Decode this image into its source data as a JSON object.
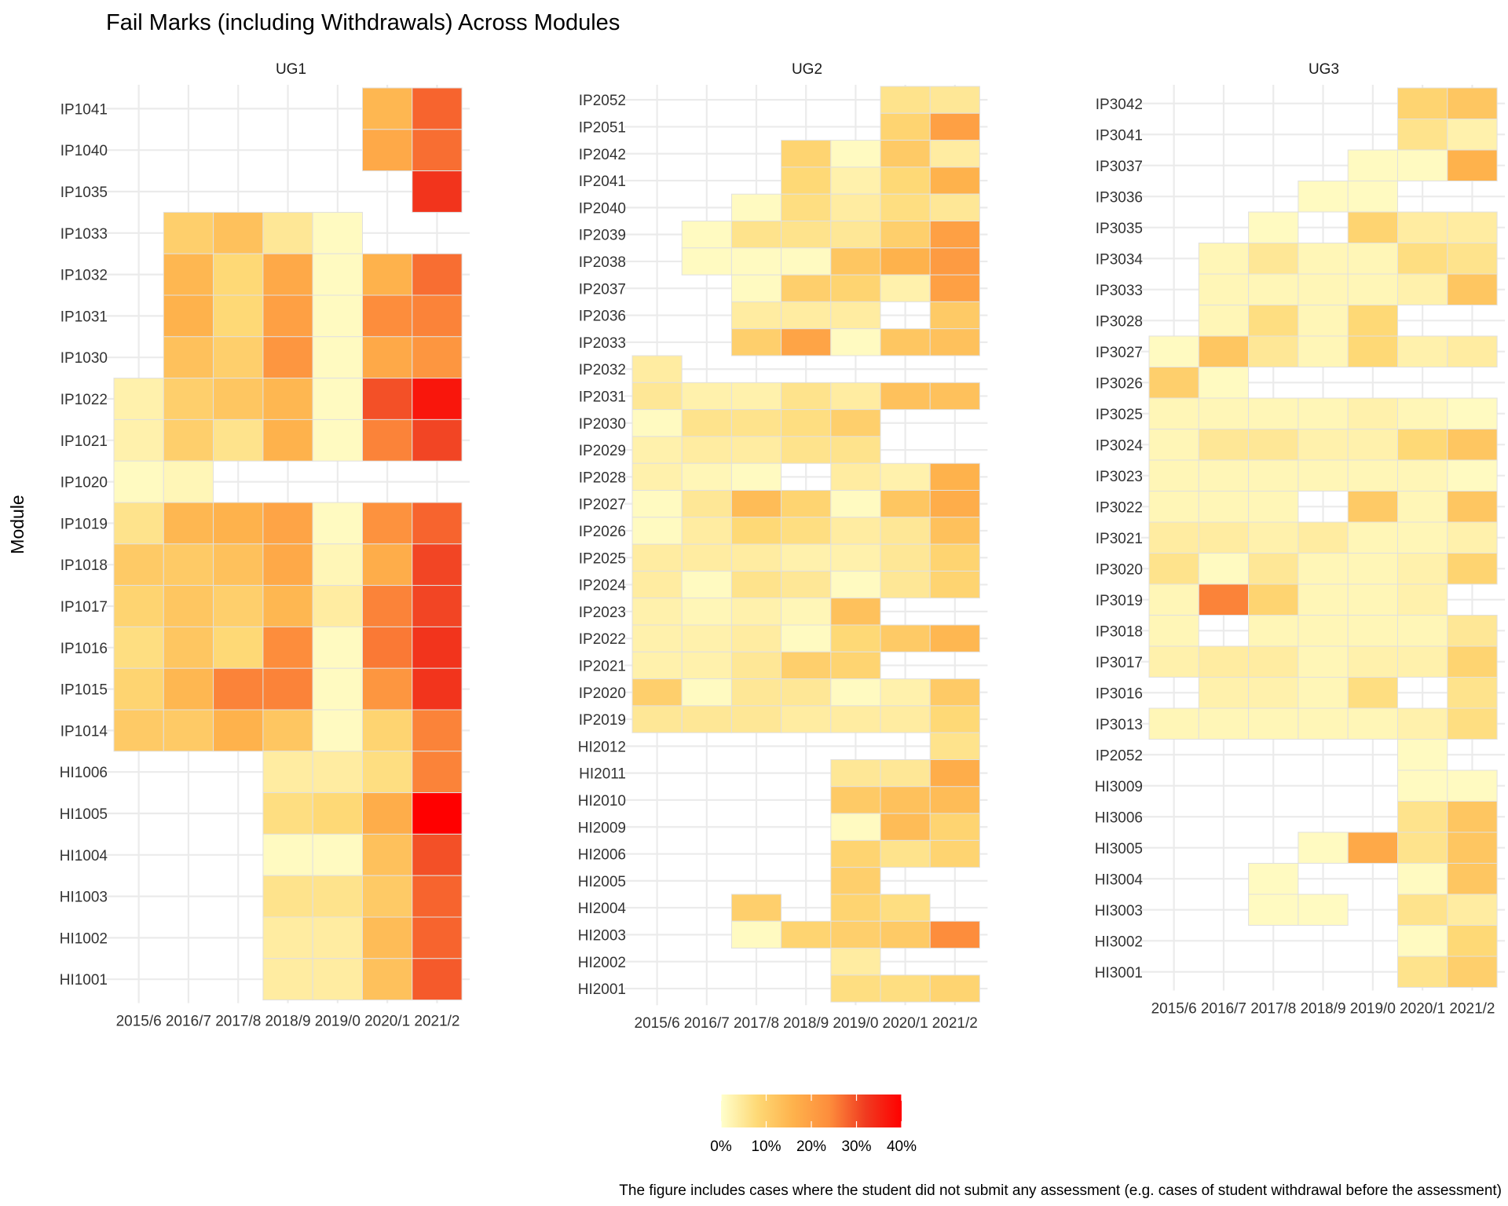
{
  "chart_data": {
    "type": "heatmap",
    "title": "Fail Marks (including Withdrawals) Across Modules",
    "ylabel": "Module",
    "caption": "The figure includes cases where the student did not submit any assessment (e.g. cases of student withdrawal before the assessment)",
    "x_tick_labels": [
      "2015/6",
      "2016/7",
      "2017/8",
      "2018/9",
      "2019/0",
      "2020/1",
      "2021/2"
    ],
    "legend": {
      "placement": "bottom",
      "range": [
        0,
        40
      ],
      "tick_labels": [
        "0%",
        "10%",
        "20%",
        "30%",
        "40%"
      ],
      "colors": [
        "#ffffcc",
        "#fed976",
        "#feb24c",
        "#fd8d3c",
        "#f03b20",
        "#ff0000"
      ]
    },
    "colors": {
      "grid": "#ebebeb",
      "tile_border": "#e0e0e0"
    },
    "panels": [
      {
        "name": "UG1",
        "modules": [
          "IP1041",
          "IP1040",
          "IP1035",
          "IP1033",
          "IP1032",
          "IP1031",
          "IP1030",
          "IP1022",
          "IP1021",
          "IP1020",
          "IP1019",
          "IP1018",
          "IP1017",
          "IP1016",
          "IP1015",
          "IP1014",
          "HI1006",
          "HI1005",
          "HI1004",
          "HI1003",
          "HI1002",
          "HI1001"
        ],
        "values": [
          [
            null,
            null,
            null,
            null,
            null,
            15,
            28
          ],
          [
            null,
            null,
            null,
            null,
            null,
            18,
            27
          ],
          [
            null,
            null,
            null,
            null,
            null,
            null,
            33
          ],
          [
            null,
            10,
            13,
            5,
            1,
            null,
            null
          ],
          [
            null,
            15,
            8,
            18,
            1,
            16,
            27
          ],
          [
            null,
            16,
            8,
            20,
            1,
            24,
            25
          ],
          [
            null,
            13,
            10,
            22,
            1,
            18,
            22
          ],
          [
            3,
            10,
            12,
            15,
            1,
            30,
            37
          ],
          [
            3,
            10,
            6,
            16,
            1,
            25,
            31
          ],
          [
            1,
            2,
            null,
            null,
            null,
            null,
            null
          ],
          [
            6,
            15,
            16,
            19,
            1,
            23,
            28
          ],
          [
            11,
            11,
            13,
            18,
            2,
            17,
            31
          ],
          [
            9,
            12,
            10,
            15,
            4,
            25,
            31
          ],
          [
            7,
            12,
            8,
            24,
            1,
            26,
            33
          ],
          [
            9,
            15,
            25,
            25,
            1,
            22,
            33
          ],
          [
            11,
            11,
            16,
            12,
            1,
            9,
            25
          ],
          [
            null,
            null,
            null,
            4,
            4,
            7,
            25
          ],
          [
            null,
            null,
            null,
            7,
            8,
            17,
            40
          ],
          [
            null,
            null,
            null,
            1,
            1,
            13,
            30
          ],
          [
            null,
            null,
            null,
            6,
            6,
            11,
            28
          ],
          [
            null,
            null,
            null,
            4,
            4,
            14,
            28
          ],
          [
            null,
            null,
            null,
            4,
            4,
            13,
            29
          ]
        ]
      },
      {
        "name": "UG2",
        "modules": [
          "IP2052",
          "IP2051",
          "IP2042",
          "IP2041",
          "IP2040",
          "IP2039",
          "IP2038",
          "IP2037",
          "IP2036",
          "IP2033",
          "IP2032",
          "IP2031",
          "IP2030",
          "IP2029",
          "IP2028",
          "IP2027",
          "IP2026",
          "IP2025",
          "IP2024",
          "IP2023",
          "IP2022",
          "IP2021",
          "IP2020",
          "IP2019",
          "HI2012",
          "HI2011",
          "HI2010",
          "HI2009",
          "HI2006",
          "HI2005",
          "HI2004",
          "HI2003",
          "HI2002",
          "HI2001"
        ],
        "values": [
          [
            null,
            null,
            null,
            null,
            null,
            6,
            5
          ],
          [
            null,
            null,
            null,
            null,
            null,
            9,
            20
          ],
          [
            null,
            null,
            null,
            9,
            1,
            11,
            4
          ],
          [
            null,
            null,
            null,
            8,
            3,
            8,
            16
          ],
          [
            null,
            null,
            1,
            7,
            4,
            7,
            5
          ],
          [
            null,
            1,
            6,
            6,
            5,
            10,
            20
          ],
          [
            null,
            1,
            1,
            1,
            12,
            16,
            21
          ],
          [
            null,
            null,
            1,
            10,
            9,
            3,
            20
          ],
          [
            null,
            null,
            4,
            4,
            4,
            null,
            11
          ],
          [
            null,
            null,
            10,
            19,
            1,
            12,
            13
          ],
          [
            4,
            null,
            null,
            null,
            null,
            null,
            null
          ],
          [
            5,
            3,
            3,
            6,
            4,
            13,
            13
          ],
          [
            1,
            6,
            6,
            7,
            10,
            null,
            null
          ],
          [
            3,
            4,
            4,
            6,
            6,
            null,
            null
          ],
          [
            3,
            2,
            1,
            null,
            4,
            3,
            16
          ],
          [
            1,
            5,
            14,
            9,
            1,
            12,
            17
          ],
          [
            1,
            4,
            8,
            7,
            4,
            5,
            13
          ],
          [
            4,
            4,
            4,
            3,
            3,
            5,
            9
          ],
          [
            4,
            1,
            6,
            5,
            1,
            5,
            9
          ],
          [
            3,
            2,
            3,
            2,
            13,
            null,
            null
          ],
          [
            3,
            3,
            4,
            1,
            8,
            11,
            15
          ],
          [
            3,
            3,
            5,
            10,
            9,
            null,
            null
          ],
          [
            10,
            1,
            5,
            5,
            1,
            3,
            11
          ],
          [
            5,
            5,
            5,
            4,
            4,
            4,
            8
          ],
          [
            null,
            null,
            null,
            null,
            null,
            null,
            6
          ],
          [
            null,
            null,
            null,
            null,
            5,
            5,
            17
          ],
          [
            null,
            null,
            null,
            null,
            11,
            13,
            14
          ],
          [
            null,
            null,
            null,
            null,
            1,
            14,
            9
          ],
          [
            null,
            null,
            null,
            null,
            9,
            6,
            9
          ],
          [
            null,
            null,
            null,
            null,
            10,
            null,
            null
          ],
          [
            null,
            null,
            10,
            null,
            9,
            7,
            null
          ],
          [
            null,
            null,
            1,
            9,
            10,
            11,
            24
          ],
          [
            null,
            null,
            null,
            null,
            4,
            null,
            null
          ],
          [
            null,
            null,
            null,
            null,
            7,
            7,
            9
          ]
        ]
      },
      {
        "name": "UG3",
        "modules": [
          "IP3042",
          "IP3041",
          "IP3037",
          "IP3036",
          "IP3035",
          "IP3034",
          "IP3033",
          "IP3028",
          "IP3027",
          "IP3026",
          "IP3025",
          "IP3024",
          "IP3023",
          "IP3022",
          "IP3021",
          "IP3020",
          "IP3019",
          "IP3018",
          "IP3017",
          "IP3016",
          "IP3013",
          "IP2052",
          "HI3009",
          "HI3006",
          "HI3005",
          "HI3004",
          "HI3003",
          "HI3002",
          "HI3001"
        ],
        "values": [
          [
            null,
            null,
            null,
            null,
            null,
            9,
            12
          ],
          [
            null,
            null,
            null,
            null,
            null,
            6,
            3
          ],
          [
            null,
            null,
            null,
            null,
            1,
            1,
            16
          ],
          [
            null,
            null,
            null,
            1,
            1,
            null,
            null
          ],
          [
            null,
            null,
            1,
            null,
            9,
            4,
            4
          ],
          [
            null,
            2,
            5,
            2,
            2,
            7,
            6
          ],
          [
            null,
            2,
            2,
            2,
            2,
            3,
            12
          ],
          [
            null,
            2,
            7,
            2,
            8,
            null,
            null
          ],
          [
            1,
            12,
            5,
            2,
            8,
            3,
            4
          ],
          [
            10,
            1,
            null,
            null,
            null,
            null,
            null
          ],
          [
            2,
            2,
            2,
            2,
            3,
            2,
            1
          ],
          [
            2,
            5,
            5,
            3,
            3,
            8,
            12
          ],
          [
            2,
            2,
            2,
            2,
            2,
            2,
            1
          ],
          [
            2,
            2,
            2,
            null,
            11,
            2,
            12
          ],
          [
            4,
            4,
            3,
            4,
            2,
            2,
            3
          ],
          [
            6,
            1,
            5,
            2,
            2,
            3,
            9
          ],
          [
            2,
            25,
            9,
            2,
            2,
            3,
            null
          ],
          [
            2,
            null,
            2,
            2,
            2,
            2,
            5
          ],
          [
            3,
            4,
            4,
            2,
            3,
            3,
            9
          ],
          [
            null,
            3,
            3,
            2,
            7,
            null,
            6
          ],
          [
            2,
            2,
            2,
            2,
            2,
            3,
            7
          ],
          [
            null,
            null,
            null,
            null,
            null,
            1,
            null
          ],
          [
            null,
            null,
            null,
            null,
            null,
            1,
            1
          ],
          [
            null,
            null,
            null,
            null,
            null,
            6,
            12
          ],
          [
            null,
            null,
            null,
            1,
            18,
            6,
            12
          ],
          [
            null,
            null,
            1,
            null,
            null,
            1,
            12
          ],
          [
            null,
            null,
            1,
            1,
            null,
            6,
            4
          ],
          [
            null,
            null,
            null,
            null,
            null,
            1,
            8
          ],
          [
            null,
            null,
            null,
            null,
            null,
            6,
            10
          ]
        ]
      }
    ]
  }
}
